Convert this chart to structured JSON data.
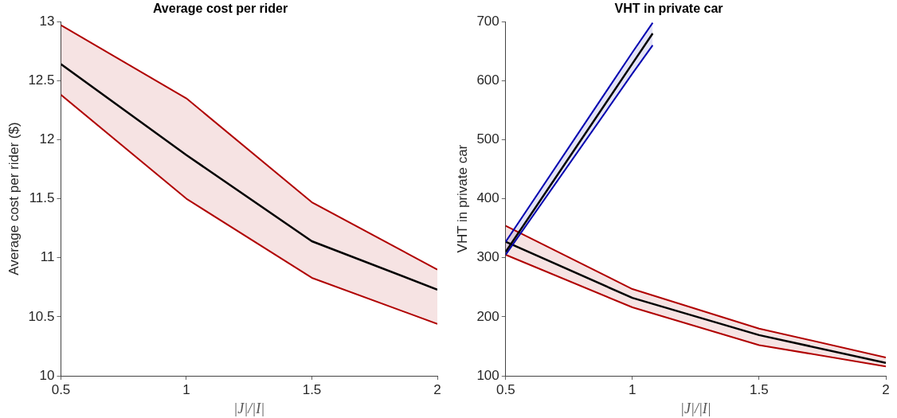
{
  "chart_data": [
    {
      "type": "line",
      "title": "Average cost per rider",
      "xlabel": "|J|/|I|",
      "ylabel": "Average cost per rider ($)",
      "x": [
        0.5,
        1,
        1.5,
        2
      ],
      "xlim": [
        0.5,
        2
      ],
      "xticks": [
        0.5,
        1,
        1.5,
        2
      ],
      "ylim": [
        10,
        13
      ],
      "yticks": [
        10,
        10.5,
        11,
        11.5,
        12,
        12.5,
        13
      ],
      "grid": false,
      "legend": false,
      "marker": "none",
      "line_style": "solid",
      "series": [
        {
          "color": "#b00000",
          "values": [
            12.97,
            12.35,
            11.47,
            10.9
          ]
        },
        {
          "color": "#b00000",
          "values": [
            12.38,
            11.5,
            10.83,
            10.44
          ]
        },
        {
          "color": "#000000",
          "values": [
            12.64,
            11.87,
            11.14,
            10.73
          ],
          "lower": [
            12.38,
            11.5,
            10.83,
            10.44
          ],
          "upper": [
            12.97,
            12.35,
            11.47,
            10.9
          ]
        }
      ]
    },
    {
      "type": "line",
      "title": "VHT in private car",
      "xlabel": "|J|/|I|",
      "ylabel": "VHT in private car",
      "x": [
        0.5,
        1,
        1.5,
        2
      ],
      "xlim": [
        0.5,
        2
      ],
      "xticks": [
        0.5,
        1,
        1.5,
        2
      ],
      "ylim": [
        100,
        700
      ],
      "yticks": [
        100,
        200,
        300,
        400,
        500,
        600,
        700
      ],
      "grid": false,
      "legend": false,
      "marker": "none",
      "line_style": "solid",
      "series": [
        {
          "color": "#b00000",
          "values": [
            354,
            247,
            180,
            131
          ]
        },
        {
          "color": "#b00000",
          "values": [
            305,
            216,
            152,
            116
          ]
        },
        {
          "color": "#000000",
          "values": [
            327,
            232,
            169,
            122
          ],
          "lower": [
            305,
            216,
            152,
            116
          ],
          "upper": [
            354,
            247,
            180,
            131
          ]
        },
        {
          "color": "#0000b0",
          "x": [
            0.5,
            1,
            1.08
          ],
          "values": [
            327,
            648,
            698
          ]
        },
        {
          "color": "#0000b0",
          "x": [
            0.5,
            1,
            1.08
          ],
          "values": [
            305,
            612,
            660
          ]
        },
        {
          "color": "#000000",
          "x": [
            0.5,
            1,
            1.08
          ],
          "values": [
            310,
            629,
            680
          ],
          "lower": [
            305,
            612,
            660
          ],
          "upper": [
            327,
            648,
            698
          ]
        }
      ]
    }
  ]
}
